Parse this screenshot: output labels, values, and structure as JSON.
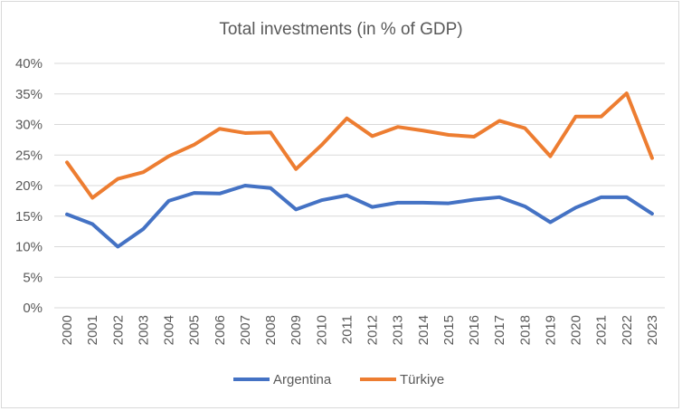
{
  "chart_data": {
    "type": "line",
    "title": "Total investments (in % of GDP)",
    "xlabel": "",
    "ylabel": "",
    "x": [
      "2000",
      "2001",
      "2002",
      "2003",
      "2004",
      "2005",
      "2006",
      "2007",
      "2008",
      "2009",
      "2010",
      "2011",
      "2012",
      "2013",
      "2014",
      "2015",
      "2016",
      "2017",
      "2018",
      "2019",
      "2020",
      "2021",
      "2022",
      "2023"
    ],
    "ylim": [
      0,
      40
    ],
    "yticks": [
      0,
      5,
      10,
      15,
      20,
      25,
      30,
      35,
      40
    ],
    "ytick_labels": [
      "0%",
      "5%",
      "10%",
      "15%",
      "20%",
      "25%",
      "30%",
      "35%",
      "40%"
    ],
    "grid": true,
    "legend_position": "bottom",
    "series": [
      {
        "name": "Argentina",
        "color": "#4472c4",
        "values": [
          15.3,
          13.7,
          10.0,
          12.9,
          17.5,
          18.8,
          18.7,
          20.0,
          19.6,
          16.1,
          17.6,
          18.4,
          16.5,
          17.2,
          17.2,
          17.1,
          17.7,
          18.1,
          16.6,
          14.0,
          16.4,
          18.1,
          18.1,
          15.4
        ]
      },
      {
        "name": "Türkiye",
        "color": "#ed7d31",
        "values": [
          23.8,
          18.0,
          21.1,
          22.2,
          24.8,
          26.7,
          29.3,
          28.6,
          28.7,
          22.7,
          26.6,
          31.0,
          28.1,
          29.6,
          29.0,
          28.3,
          28.0,
          30.6,
          29.4,
          24.8,
          31.3,
          31.3,
          35.1,
          24.5
        ]
      }
    ]
  }
}
